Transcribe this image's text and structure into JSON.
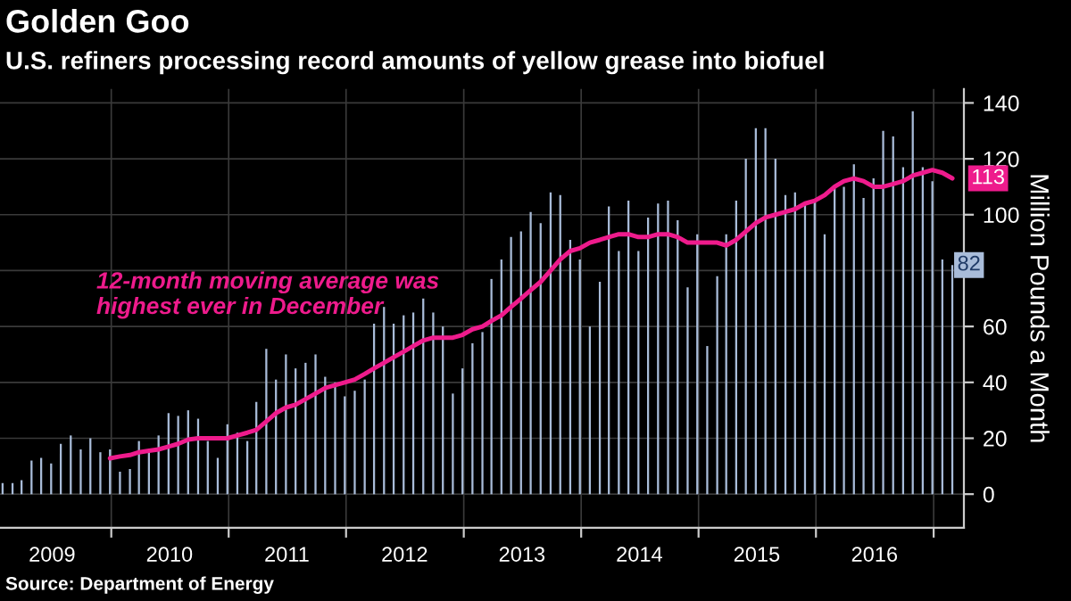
{
  "chart_data": {
    "type": "bar",
    "title": "Golden Goo",
    "subtitle": "U.S. refiners processing record amounts of yellow grease into biofuel",
    "ylabel": "Million Pounds a Month",
    "x": [
      "2009-01-28",
      "2009-02-28",
      "2009-03-28",
      "2009-04-28",
      "2009-05-28",
      "2009-06-28",
      "2009-07-28",
      "2009-08-28",
      "2009-09-28",
      "2009-10-28",
      "2009-11-28",
      "2009-12-28",
      "2010-01-28",
      "2010-02-28",
      "2010-03-28",
      "2010-04-28",
      "2010-05-28",
      "2010-06-28",
      "2010-07-28",
      "2010-08-28",
      "2010-09-28",
      "2010-10-28",
      "2010-11-28",
      "2010-12-28",
      "2011-01-28",
      "2011-02-28",
      "2011-03-28",
      "2011-04-28",
      "2011-05-28",
      "2011-06-28",
      "2011-07-28",
      "2011-08-28",
      "2011-09-28",
      "2011-10-28",
      "2011-11-28",
      "2011-12-28",
      "2012-01-28",
      "2012-02-28",
      "2012-03-28",
      "2012-04-28",
      "2012-05-28",
      "2012-06-28",
      "2012-07-28",
      "2012-08-28",
      "2012-09-28",
      "2012-10-28",
      "2012-11-28",
      "2012-12-28",
      "2013-01-28",
      "2013-02-28",
      "2013-03-28",
      "2013-04-28",
      "2013-05-28",
      "2013-06-28",
      "2013-07-28",
      "2013-08-28",
      "2013-09-28",
      "2013-10-28",
      "2013-11-28",
      "2013-12-28",
      "2014-01-28",
      "2014-02-28",
      "2014-03-28",
      "2014-04-28",
      "2014-05-28",
      "2014-06-28",
      "2014-07-28",
      "2014-08-28",
      "2014-09-28",
      "2014-10-28",
      "2014-11-28",
      "2014-12-28",
      "2015-01-28",
      "2015-02-28",
      "2015-03-28",
      "2015-04-28",
      "2015-05-28",
      "2015-06-28",
      "2015-07-28",
      "2015-08-28",
      "2015-09-28",
      "2015-10-28",
      "2015-11-28",
      "2015-12-28",
      "2016-01-28",
      "2016-02-28",
      "2016-03-28",
      "2016-04-28",
      "2016-05-28",
      "2016-06-28",
      "2016-07-28",
      "2016-08-28",
      "2016-09-28",
      "2016-10-28",
      "2016-11-28",
      "2016-12-28",
      "2017-01-28",
      "2017-02-28"
    ],
    "series": [
      {
        "type": "bar",
        "color": "#a9bcd9",
        "values": [
          4,
          4,
          5,
          12,
          13,
          11,
          18,
          21,
          16,
          20,
          15,
          16,
          8,
          9,
          19,
          15,
          21,
          29,
          28,
          30,
          27,
          19,
          13,
          25,
          22,
          19,
          33,
          52,
          41,
          50,
          45,
          47,
          50,
          42,
          40,
          35,
          37,
          41,
          61,
          67,
          61,
          64,
          65,
          70,
          65,
          60,
          36,
          45,
          54,
          58,
          77,
          84,
          92,
          94,
          101,
          97,
          108,
          107,
          91,
          84,
          60,
          76,
          103,
          87,
          105,
          87,
          99,
          104,
          105,
          98,
          74,
          93,
          53,
          78,
          93,
          105,
          120,
          131,
          131,
          120,
          107,
          108,
          104,
          105,
          93,
          110,
          110,
          118,
          106,
          113,
          130,
          128,
          117,
          137,
          117,
          112,
          84,
          82
        ],
        "value_labels": [
          null,
          null,
          null,
          null,
          null,
          null,
          null,
          null,
          null,
          null,
          null,
          null,
          null,
          null,
          null,
          null,
          null,
          null,
          null,
          null,
          null,
          null,
          null,
          null,
          null,
          null,
          null,
          null,
          null,
          null,
          null,
          null,
          null,
          null,
          null,
          null,
          null,
          null,
          null,
          null,
          null,
          null,
          null,
          null,
          null,
          null,
          null,
          null,
          null,
          null,
          null,
          null,
          null,
          null,
          null,
          null,
          null,
          null,
          null,
          null,
          null,
          null,
          null,
          null,
          null,
          null,
          null,
          null,
          null,
          null,
          null,
          null,
          null,
          null,
          null,
          null,
          null,
          null,
          null,
          null,
          null,
          null,
          null,
          null,
          null,
          null,
          null,
          null,
          null,
          null,
          null,
          null,
          null,
          null,
          null,
          null,
          null,
          "82"
        ]
      },
      {
        "type": "line",
        "color": "#ee1b8c",
        "values": [
          null,
          null,
          null,
          null,
          null,
          null,
          null,
          null,
          null,
          null,
          null,
          12.8,
          13.5,
          14,
          15,
          15.5,
          16,
          17,
          18,
          19.5,
          20,
          20,
          20,
          20,
          21,
          22,
          23,
          26,
          29,
          31,
          32,
          34,
          36,
          38,
          39,
          40,
          41,
          43,
          45,
          47,
          49,
          51,
          53,
          55,
          56,
          56,
          56,
          57,
          59,
          60,
          62,
          64,
          67,
          70,
          73,
          76,
          80,
          84,
          87,
          88,
          90,
          91,
          92,
          93,
          93,
          92,
          92,
          93,
          93,
          92,
          90,
          90,
          90,
          90,
          89,
          91,
          94,
          97,
          99,
          100,
          101,
          102,
          104,
          105,
          107,
          110,
          112,
          113,
          112,
          110,
          110,
          111,
          112,
          114,
          115,
          116,
          115,
          113
        ],
        "value_labels": [
          null,
          null,
          null,
          null,
          null,
          null,
          null,
          null,
          null,
          null,
          null,
          null,
          null,
          null,
          null,
          null,
          null,
          null,
          null,
          null,
          null,
          null,
          null,
          null,
          null,
          null,
          null,
          null,
          null,
          null,
          null,
          null,
          null,
          null,
          null,
          null,
          null,
          null,
          null,
          null,
          null,
          null,
          null,
          null,
          null,
          null,
          null,
          null,
          null,
          null,
          null,
          null,
          null,
          null,
          null,
          null,
          null,
          null,
          null,
          null,
          null,
          null,
          null,
          null,
          null,
          null,
          null,
          null,
          null,
          null,
          null,
          null,
          null,
          null,
          null,
          null,
          null,
          null,
          null,
          null,
          null,
          null,
          null,
          null,
          null,
          null,
          null,
          null,
          null,
          null,
          null,
          null,
          null,
          null,
          null,
          null,
          null,
          "113"
        ]
      }
    ],
    "xlim": [
      "2009-01-20",
      "2017-04-05"
    ],
    "xticks": [
      {
        "value": "2009-07-01",
        "label": "2009"
      },
      {
        "value": "2010-01-01",
        "label": null
      },
      {
        "value": "2010-07-01",
        "label": "2010"
      },
      {
        "value": "2011-01-01",
        "label": null
      },
      {
        "value": "2011-07-01",
        "label": "2011"
      },
      {
        "value": "2012-01-01",
        "label": null
      },
      {
        "value": "2012-07-01",
        "label": "2012"
      },
      {
        "value": "2013-01-01",
        "label": null
      },
      {
        "value": "2013-07-01",
        "label": "2013"
      },
      {
        "value": "2014-01-01",
        "label": null
      },
      {
        "value": "2014-07-01",
        "label": "2014"
      },
      {
        "value": "2015-01-01",
        "label": null
      },
      {
        "value": "2015-07-01",
        "label": "2015"
      },
      {
        "value": "2016-01-01",
        "label": null
      },
      {
        "value": "2016-07-01",
        "label": "2016"
      },
      {
        "value": "2017-01-01",
        "label": null
      }
    ],
    "ylim": [
      -12,
      145
    ],
    "yticks": [
      0,
      20,
      40,
      60,
      {
        "value": 80,
        "label": null
      },
      100,
      120,
      140
    ],
    "grid": true,
    "legend": false,
    "annotations": [
      "12-month moving average was\nhighest ever in December",
      "Source: Department of Energy"
    ]
  }
}
